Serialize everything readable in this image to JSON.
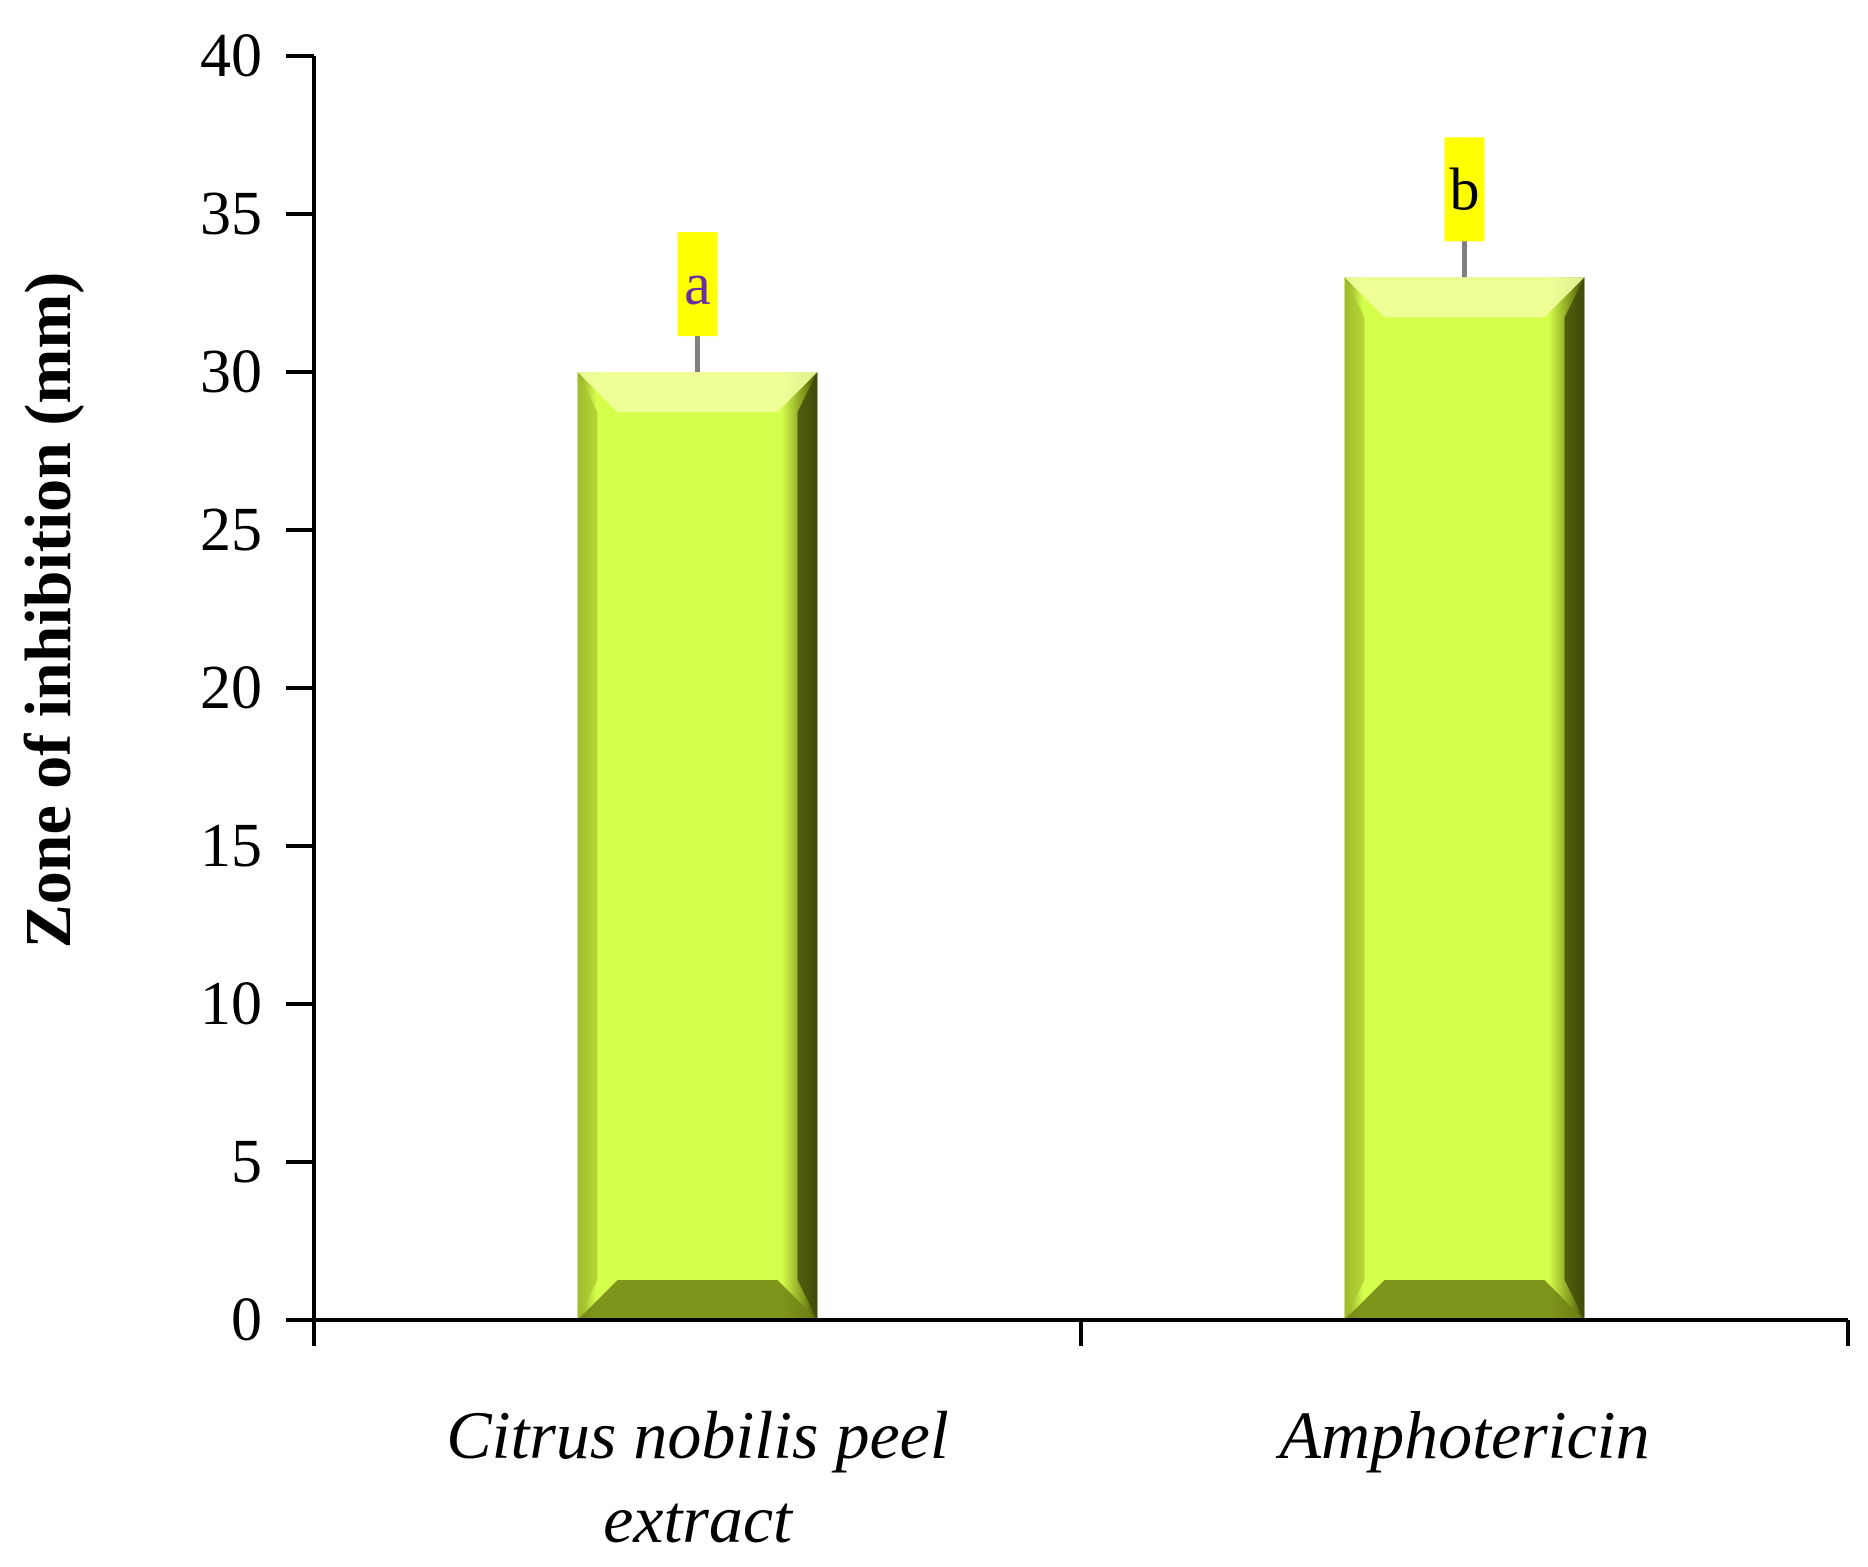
{
  "chart_data": {
    "type": "bar",
    "title": "",
    "xlabel": "",
    "ylabel": "Zone of inhibition (mm)",
    "ylim": [
      0,
      40
    ],
    "ytick_step": 5,
    "grid": false,
    "categories": [
      "Citrus nobilis peel extract",
      "Amphotericin"
    ],
    "category_lines": [
      [
        "Citrus nobilis peel",
        "extract"
      ],
      [
        "Amphotericin"
      ]
    ],
    "values": [
      30,
      33
    ],
    "error": [
      1.2,
      1.2
    ],
    "significance_labels": [
      "a",
      "b"
    ],
    "significance_text_colors": [
      "#6a2fa0",
      "#000000"
    ],
    "colors": {
      "bar_fill": "#d6ff4d",
      "bar_highlight": "#f2ff9e",
      "bar_shadow": "#3f4a08",
      "error_bar": "#7f7f7f",
      "label_background": "#ffff00",
      "axis": "#000000"
    }
  }
}
